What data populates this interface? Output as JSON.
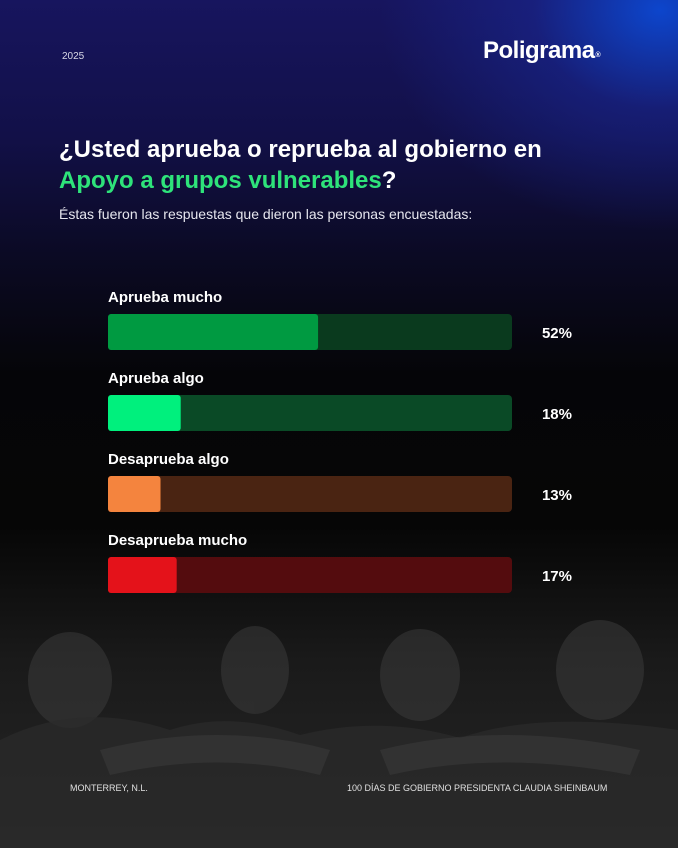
{
  "header": {
    "year": "2025",
    "brand": "Poligrama",
    "brand_mark": "®"
  },
  "title": {
    "line1": "¿Usted aprueba o reprueba al gobierno en",
    "highlight": "Apoyo a grupos vulnerables",
    "suffix": "?"
  },
  "subtitle": "Éstas fueron las respuestas que dieron las personas encuestadas:",
  "chart_data": {
    "type": "bar",
    "orientation": "horizontal",
    "categories": [
      "Aprueba mucho",
      "Aprueba algo",
      "Desaprueba algo",
      "Desaprueba mucho"
    ],
    "values": [
      52,
      18,
      13,
      17
    ],
    "value_labels": [
      "52%",
      "18%",
      "13%",
      "17%"
    ],
    "xlim": [
      0,
      100
    ],
    "grid": false,
    "legend": "none",
    "colors": {
      "fill": [
        "#009a41",
        "#00f07d",
        "#f4843e",
        "#e4121a"
      ],
      "track": [
        "#0a3a1e",
        "#0a4a26",
        "#4a2412",
        "#540c0e"
      ]
    }
  },
  "footer": {
    "location": "MONTERREY, N.L.",
    "caption": "100 DÍAS DE GOBIERNO PRESIDENTA CLAUDIA SHEINBAUM"
  }
}
